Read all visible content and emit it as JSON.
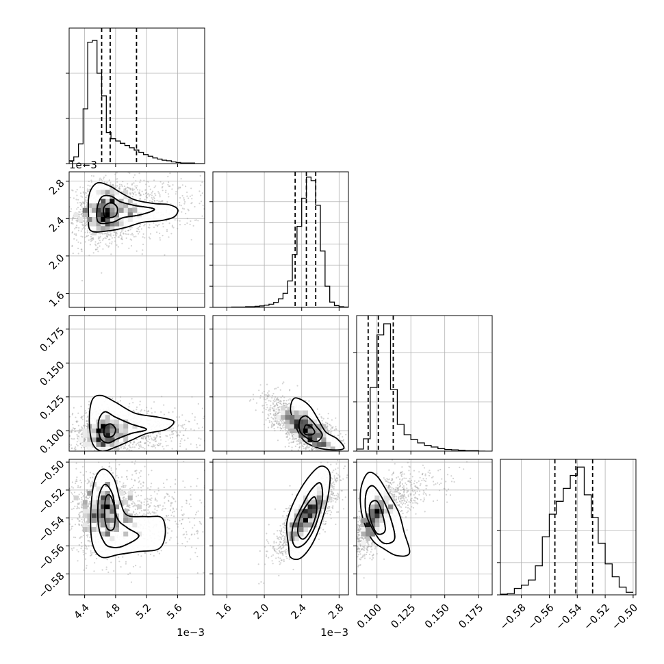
{
  "chart_data": {
    "type": "corner",
    "colors": {
      "lines": "#000000",
      "grid": "#b0b0b0",
      "points": "#9e9e9e"
    },
    "parameters": [
      {
        "id": "p0",
        "range": [
          4.2,
          5.95
        ],
        "ticks": [
          4.4,
          4.8,
          5.2,
          5.6
        ],
        "tick_labels": [
          "4.4",
          "4.8",
          "5.2",
          "5.6"
        ],
        "offset_label": "1e−3"
      },
      {
        "id": "p1",
        "range": [
          1.45,
          2.9
        ],
        "ticks": [
          1.6,
          2.0,
          2.4,
          2.8
        ],
        "tick_labels": [
          "1.6",
          "2.0",
          "2.4",
          "2.8"
        ],
        "offset_label": "1e−3"
      },
      {
        "id": "p2",
        "range": [
          0.085,
          0.185
        ],
        "ticks": [
          0.1,
          0.125,
          0.15,
          0.175
        ],
        "tick_labels": [
          "0.100",
          "0.125",
          "0.150",
          "0.175"
        ],
        "offset_label": ""
      },
      {
        "id": "p3",
        "range": [
          -0.595,
          -0.498
        ],
        "ticks": [
          -0.58,
          -0.56,
          -0.54,
          -0.52,
          -0.5
        ],
        "tick_labels": [
          "−0.58",
          "−0.56",
          "−0.54",
          "−0.52",
          "−0.50"
        ],
        "offset_label": ""
      }
    ],
    "histograms": [
      {
        "param": 0,
        "bins": [
          4.2,
          4.26,
          4.32,
          4.38,
          4.44,
          4.5,
          4.56,
          4.62,
          4.68,
          4.74,
          4.8,
          4.86,
          4.92,
          4.98,
          5.04,
          5.1,
          5.16,
          5.22,
          5.28,
          5.34,
          5.4,
          5.46,
          5.52,
          5.58,
          5.64,
          5.7,
          5.76,
          5.82,
          5.88,
          5.94
        ],
        "counts": [
          5,
          12,
          35,
          97,
          215,
          218,
          160,
          120,
          55,
          44,
          40,
          36,
          32,
          28,
          24,
          20,
          16,
          13,
          10,
          8,
          6,
          5,
          3,
          2,
          1,
          1,
          1,
          0,
          0
        ],
        "quantiles": [
          4.62,
          4.73,
          5.07
        ],
        "ymax": 240,
        "yticks": [
          0,
          80,
          160
        ]
      },
      {
        "param": 1,
        "bins": [
          1.45,
          1.5,
          1.55,
          1.6,
          1.65,
          1.7,
          1.75,
          1.8,
          1.85,
          1.9,
          1.95,
          2.0,
          2.05,
          2.1,
          2.15,
          2.2,
          2.25,
          2.3,
          2.35,
          2.4,
          2.45,
          2.5,
          2.55,
          2.6,
          2.65,
          2.7,
          2.75,
          2.8,
          2.85,
          2.9
        ],
        "counts": [
          0,
          0,
          0,
          0,
          1,
          1,
          1,
          2,
          2,
          3,
          4,
          6,
          9,
          14,
          24,
          40,
          75,
          150,
          230,
          310,
          370,
          360,
          290,
          160,
          60,
          15,
          5,
          2,
          1
        ],
        "quantiles": [
          2.33,
          2.45,
          2.55
        ],
        "ymax": 385,
        "yticks": [
          0,
          60,
          120,
          180,
          240,
          300
        ]
      },
      {
        "param": 2,
        "bins": [
          0.085,
          0.09,
          0.095,
          0.1,
          0.105,
          0.11,
          0.115,
          0.12,
          0.125,
          0.13,
          0.135,
          0.14,
          0.145,
          0.15,
          0.155,
          0.16,
          0.165,
          0.17,
          0.175,
          0.18
        ],
        "counts": [
          5,
          30,
          155,
          283,
          310,
          150,
          65,
          40,
          28,
          20,
          14,
          10,
          6,
          4,
          3,
          2,
          1,
          1,
          0
        ],
        "quantiles": [
          0.0935,
          0.101,
          0.112
        ],
        "ymax": 330,
        "yticks": [
          0,
          120,
          240
        ]
      },
      {
        "param": 3,
        "bins": [
          -0.595,
          -0.59,
          -0.585,
          -0.58,
          -0.575,
          -0.57,
          -0.565,
          -0.56,
          -0.555,
          -0.55,
          -0.545,
          -0.54,
          -0.535,
          -0.53,
          -0.525,
          -0.52,
          -0.515,
          -0.51,
          -0.505,
          -0.5
        ],
        "counts": [
          1,
          2,
          10,
          15,
          23,
          45,
          90,
          125,
          145,
          165,
          185,
          198,
          155,
          120,
          80,
          48,
          28,
          12,
          4
        ],
        "quantiles": [
          -0.556,
          -0.541,
          -0.529
        ],
        "ymax": 210,
        "yticks": [
          0,
          50,
          100
        ]
      }
    ],
    "pairs": [
      {
        "x": 0,
        "y": 1,
        "center": [
          4.74,
          2.48
        ],
        "sigma": [
          0.3,
          0.17
        ],
        "rho": 0.15,
        "skew_x": 0.85,
        "contours": [
          [
            [
              4.48,
              2.27
            ],
            [
              4.45,
              2.44
            ],
            [
              4.46,
              2.66
            ],
            [
              4.56,
              2.78
            ],
            [
              4.72,
              2.75
            ],
            [
              4.86,
              2.68
            ],
            [
              5.05,
              2.6
            ],
            [
              5.3,
              2.56
            ],
            [
              5.48,
              2.55
            ],
            [
              5.6,
              2.5
            ],
            [
              5.56,
              2.42
            ],
            [
              5.4,
              2.38
            ],
            [
              5.15,
              2.36
            ],
            [
              4.95,
              2.31
            ],
            [
              4.72,
              2.27
            ]
          ],
          [
            [
              4.58,
              2.36
            ],
            [
              4.56,
              2.5
            ],
            [
              4.62,
              2.63
            ],
            [
              4.74,
              2.64
            ],
            [
              4.86,
              2.58
            ],
            [
              5.05,
              2.54
            ],
            [
              5.3,
              2.5
            ],
            [
              5.12,
              2.44
            ],
            [
              4.9,
              2.41
            ],
            [
              4.76,
              2.36
            ]
          ],
          [
            [
              4.66,
              2.42
            ],
            [
              4.65,
              2.52
            ],
            [
              4.74,
              2.57
            ],
            [
              4.82,
              2.52
            ],
            [
              4.81,
              2.44
            ],
            [
              4.74,
              2.41
            ]
          ]
        ]
      },
      {
        "x": 0,
        "y": 2,
        "center": [
          4.73,
          0.098
        ],
        "sigma": [
          0.3,
          0.009
        ],
        "rho": 0.1,
        "skew_x": 0.85,
        "contours": [
          [
            [
              4.5,
              0.091
            ],
            [
              4.46,
              0.108
            ],
            [
              4.5,
              0.123
            ],
            [
              4.62,
              0.126
            ],
            [
              4.8,
              0.121
            ],
            [
              5.05,
              0.113
            ],
            [
              5.35,
              0.11
            ],
            [
              5.55,
              0.107
            ],
            [
              5.45,
              0.101
            ],
            [
              5.2,
              0.098
            ],
            [
              5.0,
              0.093
            ],
            [
              4.8,
              0.088
            ],
            [
              4.62,
              0.085
            ]
          ],
          [
            [
              4.6,
              0.095
            ],
            [
              4.58,
              0.107
            ],
            [
              4.66,
              0.114
            ],
            [
              4.8,
              0.11
            ],
            [
              5.0,
              0.105
            ],
            [
              5.2,
              0.101
            ],
            [
              5.0,
              0.098
            ],
            [
              4.82,
              0.094
            ],
            [
              4.7,
              0.091
            ]
          ],
          [
            [
              4.66,
              0.096
            ],
            [
              4.66,
              0.103
            ],
            [
              4.74,
              0.105
            ],
            [
              4.8,
              0.101
            ],
            [
              4.76,
              0.096
            ]
          ]
        ]
      },
      {
        "x": 0,
        "y": 3,
        "center": [
          4.73,
          -0.537
        ],
        "sigma": [
          0.3,
          0.015
        ],
        "rho": -0.05,
        "skew_x": 0.85,
        "contours": [
          [
            [
              4.62,
              -0.568
            ],
            [
              4.5,
              -0.558
            ],
            [
              4.48,
              -0.535
            ],
            [
              4.53,
              -0.513
            ],
            [
              4.64,
              -0.505
            ],
            [
              4.78,
              -0.512
            ],
            [
              4.86,
              -0.528
            ],
            [
              4.95,
              -0.538
            ],
            [
              5.2,
              -0.539
            ],
            [
              5.4,
              -0.54
            ],
            [
              5.44,
              -0.552
            ],
            [
              5.36,
              -0.562
            ],
            [
              5.1,
              -0.564
            ],
            [
              4.85,
              -0.566
            ]
          ],
          [
            [
              4.66,
              -0.558
            ],
            [
              4.58,
              -0.546
            ],
            [
              4.58,
              -0.526
            ],
            [
              4.66,
              -0.516
            ],
            [
              4.76,
              -0.523
            ],
            [
              4.82,
              -0.54
            ],
            [
              4.95,
              -0.547
            ],
            [
              5.1,
              -0.553
            ],
            [
              4.9,
              -0.56
            ],
            [
              4.76,
              -0.561
            ]
          ],
          [
            [
              4.7,
              -0.548
            ],
            [
              4.66,
              -0.54
            ],
            [
              4.67,
              -0.526
            ],
            [
              4.73,
              -0.524
            ],
            [
              4.79,
              -0.534
            ],
            [
              4.78,
              -0.547
            ]
          ]
        ]
      },
      {
        "x": 1,
        "y": 2,
        "center": [
          2.44,
          0.101
        ],
        "sigma": [
          0.2,
          0.011
        ],
        "rho": -0.72,
        "skew_x": 0,
        "contours": [
          [
            [
              2.32,
              0.124
            ],
            [
              2.28,
              0.116
            ],
            [
              2.33,
              0.104
            ],
            [
              2.42,
              0.093
            ],
            [
              2.55,
              0.088
            ],
            [
              2.7,
              0.086
            ],
            [
              2.85,
              0.087
            ],
            [
              2.78,
              0.094
            ],
            [
              2.66,
              0.099
            ],
            [
              2.58,
              0.108
            ],
            [
              2.5,
              0.117
            ],
            [
              2.42,
              0.122
            ]
          ],
          [
            [
              2.38,
              0.108
            ],
            [
              2.38,
              0.1
            ],
            [
              2.45,
              0.095
            ],
            [
              2.56,
              0.092
            ],
            [
              2.62,
              0.097
            ],
            [
              2.56,
              0.103
            ],
            [
              2.5,
              0.108
            ],
            [
              2.44,
              0.111
            ]
          ],
          [
            [
              2.44,
              0.104
            ],
            [
              2.43,
              0.098
            ],
            [
              2.5,
              0.097
            ],
            [
              2.54,
              0.099
            ],
            [
              2.5,
              0.103
            ]
          ]
        ]
      },
      {
        "x": 1,
        "y": 3,
        "center": [
          2.46,
          -0.538
        ],
        "sigma": [
          0.16,
          0.014
        ],
        "rho": 0.78,
        "skew_x": 0,
        "contours": [
          [
            [
              2.26,
              -0.56
            ],
            [
              2.24,
              -0.544
            ],
            [
              2.32,
              -0.528
            ],
            [
              2.46,
              -0.512
            ],
            [
              2.6,
              -0.503
            ],
            [
              2.7,
              -0.508
            ],
            [
              2.68,
              -0.525
            ],
            [
              2.6,
              -0.545
            ],
            [
              2.5,
              -0.56
            ],
            [
              2.38,
              -0.569
            ],
            [
              2.28,
              -0.568
            ]
          ],
          [
            [
              2.3,
              -0.556
            ],
            [
              2.31,
              -0.545
            ],
            [
              2.4,
              -0.532
            ],
            [
              2.5,
              -0.52
            ],
            [
              2.6,
              -0.515
            ],
            [
              2.62,
              -0.527
            ],
            [
              2.55,
              -0.545
            ],
            [
              2.45,
              -0.557
            ],
            [
              2.35,
              -0.561
            ]
          ],
          [
            [
              2.36,
              -0.551
            ],
            [
              2.38,
              -0.54
            ],
            [
              2.46,
              -0.53
            ],
            [
              2.54,
              -0.525
            ],
            [
              2.56,
              -0.535
            ],
            [
              2.5,
              -0.548
            ],
            [
              2.42,
              -0.555
            ]
          ]
        ]
      },
      {
        "x": 2,
        "y": 3,
        "center": [
          0.1,
          -0.537
        ],
        "sigma": [
          0.011,
          0.014
        ],
        "rho": 0.75,
        "skew_x": 0.6,
        "contours": [
          [
            [
              0.089,
              -0.538
            ],
            [
              0.088,
              -0.52
            ],
            [
              0.093,
              -0.508
            ],
            [
              0.1,
              -0.51
            ],
            [
              0.108,
              -0.522
            ],
            [
              0.116,
              -0.536
            ],
            [
              0.12,
              -0.55
            ],
            [
              0.124,
              -0.565
            ],
            [
              0.115,
              -0.567
            ],
            [
              0.105,
              -0.562
            ],
            [
              0.096,
              -0.555
            ]
          ],
          [
            [
              0.092,
              -0.537
            ],
            [
              0.092,
              -0.522
            ],
            [
              0.097,
              -0.517
            ],
            [
              0.104,
              -0.526
            ],
            [
              0.11,
              -0.54
            ],
            [
              0.113,
              -0.555
            ],
            [
              0.105,
              -0.558
            ],
            [
              0.098,
              -0.55
            ]
          ],
          [
            [
              0.095,
              -0.54
            ],
            [
              0.095,
              -0.53
            ],
            [
              0.1,
              -0.528
            ],
            [
              0.104,
              -0.537
            ],
            [
              0.106,
              -0.549
            ],
            [
              0.1,
              -0.551
            ]
          ]
        ]
      }
    ]
  }
}
